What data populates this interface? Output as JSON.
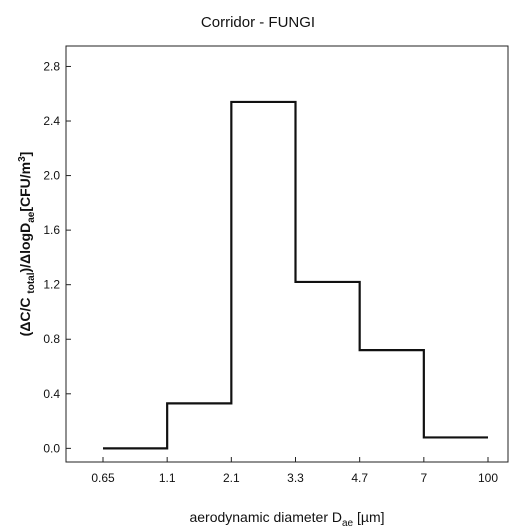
{
  "chart_data": {
    "type": "line",
    "title": "Corridor - FUNGI",
    "xlabel": "aerodynamic diameter D",
    "xlabel_sub": "ae",
    "xlabel_unit": " [µm]",
    "ylabel_parts": [
      {
        "t": "(ΔC/C ",
        "sub": false
      },
      {
        "t": "total",
        "sub": true
      },
      {
        "t": ")/ΔlogD",
        "sub": false
      },
      {
        "t": "ae",
        "sub": true
      },
      {
        "t": "[CFU/m",
        "sub": false
      },
      {
        "t": "3",
        "sup": true
      },
      {
        "t": "]",
        "sub": false
      }
    ],
    "x_ticks": [
      "0.65",
      "1.1",
      "2.1",
      "3.3",
      "4.7",
      "7",
      "100"
    ],
    "y_ticks": [
      "0.0",
      "0.4",
      "0.8",
      "1.2",
      "1.6",
      "2.0",
      "2.4",
      "2.8"
    ],
    "ylim": [
      -0.1,
      2.95
    ],
    "series": [
      {
        "bins": [
          {
            "from": "0.65",
            "to": "1.1",
            "value": 0.0
          },
          {
            "from": "1.1",
            "to": "2.1",
            "value": 0.33
          },
          {
            "from": "2.1",
            "to": "3.3",
            "value": 2.54
          },
          {
            "from": "3.3",
            "to": "4.7",
            "value": 1.22
          },
          {
            "from": "4.7",
            "to": "7",
            "value": 0.72
          },
          {
            "from": "7",
            "to": "100",
            "value": 0.08
          }
        ]
      }
    ],
    "grid": false
  }
}
